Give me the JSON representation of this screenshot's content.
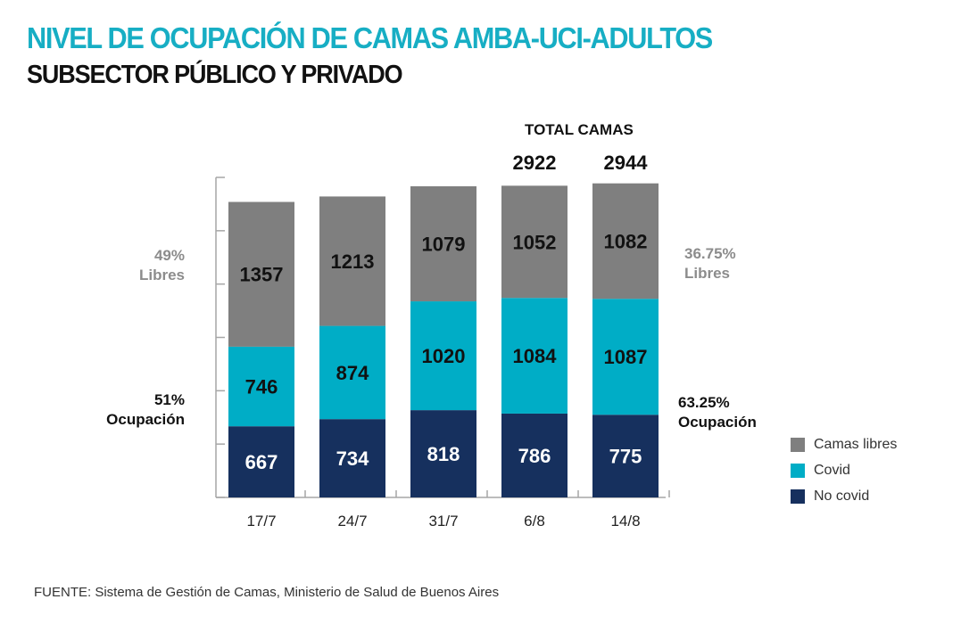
{
  "chart_data": {
    "type": "bar",
    "stacked": true,
    "title": "NIVEL DE OCUPACIÓN DE CAMAS AMBA-UCI-ADULTOS",
    "subtitle": "SUBSECTOR PÚBLICO Y PRIVADO",
    "categories": [
      "17/7",
      "24/7",
      "31/7",
      "6/8",
      "14/8"
    ],
    "series": [
      {
        "name": "No covid",
        "color": "#16305e",
        "label_color": "#ffffff",
        "values": [
          667,
          734,
          818,
          786,
          775
        ]
      },
      {
        "name": "Covid",
        "color": "#00adc6",
        "label_color": "#111111",
        "values": [
          746,
          874,
          1020,
          1084,
          1087
        ]
      },
      {
        "name": "Camas libres",
        "color": "#7f7f7f",
        "label_color": "#111111",
        "values": [
          1357,
          1213,
          1079,
          1052,
          1082
        ]
      }
    ],
    "ylim": [
      0,
      3000
    ],
    "y_ticks": [
      0,
      500,
      1000,
      1500,
      2000,
      2500,
      3000
    ],
    "y_tick_labels_shown": false,
    "xlabel": "",
    "ylabel": "",
    "legend": {
      "position": "right",
      "order": [
        "Camas libres",
        "Covid",
        "No covid"
      ]
    },
    "total_camas": {
      "label": "TOTAL CAMAS",
      "values": [
        {
          "category": "6/8",
          "value": "2922"
        },
        {
          "category": "14/8",
          "value": "2944"
        }
      ]
    },
    "annotations": {
      "left_libres": {
        "pct": "49%",
        "label": "Libres"
      },
      "left_ocupacion": {
        "pct": "51%",
        "label": "Ocupación"
      },
      "right_libres": {
        "pct": "36.75%",
        "label": "Libres"
      },
      "right_ocupacion": {
        "pct": "63.25%",
        "label": "Ocupación"
      }
    },
    "source": "FUENTE: Sistema de Gestión de Camas, Ministerio de Salud de Buenos Aires"
  }
}
